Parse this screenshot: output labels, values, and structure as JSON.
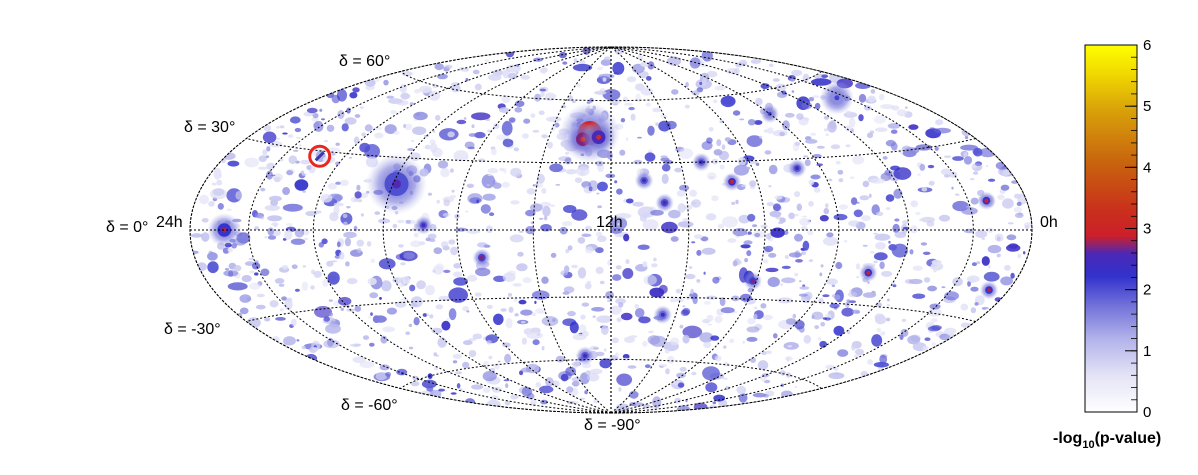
{
  "chart_data": {
    "type": "heatmap",
    "projection": "hammer-aitoff",
    "coordinate_system": "equatorial",
    "ra_labels": [
      {
        "ra_h": 24,
        "text": "24h"
      },
      {
        "ra_h": 12,
        "text": "12h"
      },
      {
        "ra_h": 0,
        "text": "0h"
      }
    ],
    "dec_labels": [
      {
        "dec": 60,
        "text": "δ = 60°"
      },
      {
        "dec": 30,
        "text": "δ = 30°"
      },
      {
        "dec": 0,
        "text": "δ = 0°"
      },
      {
        "dec": -30,
        "text": "δ = -30°"
      },
      {
        "dec": -60,
        "text": "δ = -60°"
      },
      {
        "dec": -90,
        "text": "δ = -90°"
      }
    ],
    "grid": {
      "ra_lines_h": [
        0,
        2,
        4,
        6,
        8,
        10,
        12,
        14,
        16,
        18,
        20,
        22,
        24
      ],
      "dec_lines_deg": [
        -60,
        -30,
        0,
        30,
        60
      ]
    },
    "colorbar": {
      "title_main": "-log",
      "title_sub": "10",
      "title_tail": "(p-value)",
      "range": [
        0,
        6
      ],
      "ticks": [
        "0",
        "1",
        "2",
        "3",
        "4",
        "5",
        "6"
      ]
    },
    "hotspots": [
      {
        "ra_h": 12.7,
        "dec": 44,
        "value": 3.6,
        "size": "large"
      },
      {
        "ra_h": 12.9,
        "dec": 41,
        "value": 3.3,
        "size": "medium"
      },
      {
        "ra_h": 12.4,
        "dec": 42,
        "value": 3.1,
        "size": "medium"
      },
      {
        "ra_h": 17.9,
        "dec": 19,
        "value": 2.6,
        "size": "large"
      },
      {
        "ra_h": 22.8,
        "dec": 0,
        "value": 2.8,
        "size": "medium"
      },
      {
        "ra_h": 8.7,
        "dec": 21,
        "value": 2.9,
        "size": "small"
      },
      {
        "ra_h": 1.4,
        "dec": 10,
        "value": 2.9,
        "size": "small"
      },
      {
        "ra_h": 15.4,
        "dec": -12,
        "value": 2.7,
        "size": "small"
      },
      {
        "ra_h": 4.9,
        "dec": -17,
        "value": 2.9,
        "size": "small"
      },
      {
        "ra_h": 10.6,
        "dec": 12,
        "value": 2.6,
        "size": "small"
      },
      {
        "ra_h": 6.7,
        "dec": 26,
        "value": 2.5,
        "size": "small"
      },
      {
        "ra_h": 9.4,
        "dec": 30,
        "value": 2.4,
        "size": "small"
      },
      {
        "ra_h": 11.1,
        "dec": 22,
        "value": 2.5,
        "size": "small"
      },
      {
        "ra_h": 8.1,
        "dec": -22,
        "value": 2.7,
        "size": "small"
      },
      {
        "ra_h": 0.7,
        "dec": -20,
        "value": 2.8,
        "size": "small"
      },
      {
        "ra_h": 16.9,
        "dec": 2,
        "value": 2.5,
        "size": "small"
      },
      {
        "ra_h": 10.4,
        "dec": -38,
        "value": 2.4,
        "size": "small"
      },
      {
        "ra_h": 13.1,
        "dec": -58,
        "value": 2.5,
        "size": "small"
      },
      {
        "ra_h": 2.4,
        "dec": 52,
        "value": 2.1,
        "size": "medium"
      },
      {
        "ra_h": 6.0,
        "dec": 50,
        "value": 2.1,
        "size": "small"
      }
    ],
    "marker": {
      "ra_h": 20.8,
      "dec": 28,
      "shape": "ring",
      "color": "#e8281e"
    }
  }
}
